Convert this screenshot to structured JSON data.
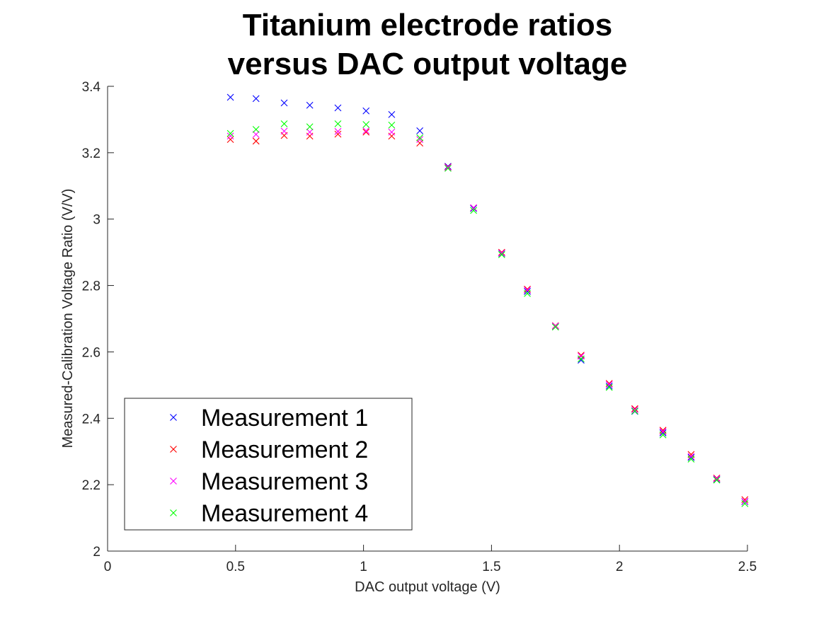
{
  "chart_data": {
    "type": "scatter",
    "title_lines": [
      "Titanium electrode ratios",
      "versus DAC output voltage"
    ],
    "xlabel": "DAC output voltage (V)",
    "ylabel": "Measured-Calibration Voltage Ratio (V/V)",
    "xlim": [
      0,
      2.5
    ],
    "ylim": [
      2,
      3.4
    ],
    "x_ticks": [
      0,
      0.5,
      1,
      1.5,
      2,
      2.5
    ],
    "x_tick_labels": [
      "0",
      "0.5",
      "1",
      "1.5",
      "2",
      "2.5"
    ],
    "y_ticks": [
      2,
      2.2,
      2.4,
      2.6,
      2.8,
      3,
      3.2,
      3.4
    ],
    "y_tick_labels": [
      "2",
      "2.2",
      "2.4",
      "2.6",
      "2.8",
      "3",
      "3.2",
      "3.4"
    ],
    "marker": "x",
    "grid": false,
    "legend_position": "bottom-left",
    "x": [
      0.48,
      0.58,
      0.69,
      0.79,
      0.9,
      1.01,
      1.11,
      1.22,
      1.33,
      1.43,
      1.54,
      1.64,
      1.75,
      1.85,
      1.96,
      2.06,
      2.17,
      2.28,
      2.38,
      2.49
    ],
    "series": [
      {
        "name": "Measurement 1",
        "color": "#0000ff",
        "values": [
          3.367,
          3.363,
          3.35,
          3.343,
          3.335,
          3.326,
          3.315,
          3.266,
          3.159,
          3.032,
          2.897,
          2.782,
          2.677,
          2.575,
          2.497,
          2.421,
          2.356,
          2.282,
          2.216,
          2.149
        ]
      },
      {
        "name": "Measurement 2",
        "color": "#ff0000",
        "values": [
          3.24,
          3.235,
          3.252,
          3.25,
          3.256,
          3.262,
          3.25,
          3.229,
          3.157,
          3.034,
          2.9,
          2.789,
          2.679,
          2.59,
          2.505,
          2.429,
          2.364,
          2.291,
          2.22,
          2.155
        ]
      },
      {
        "name": "Measurement 3",
        "color": "#ff00ff",
        "values": [
          3.25,
          3.255,
          3.265,
          3.262,
          3.264,
          3.266,
          3.262,
          3.24,
          3.156,
          3.034,
          2.898,
          2.786,
          2.678,
          2.587,
          2.502,
          2.426,
          2.36,
          2.285,
          2.218,
          2.15
        ]
      },
      {
        "name": "Measurement 4",
        "color": "#00ff00",
        "values": [
          3.258,
          3.27,
          3.287,
          3.278,
          3.287,
          3.285,
          3.283,
          3.245,
          3.153,
          3.026,
          2.893,
          2.776,
          2.675,
          2.579,
          2.493,
          2.422,
          2.35,
          2.277,
          2.214,
          2.143
        ]
      }
    ]
  }
}
